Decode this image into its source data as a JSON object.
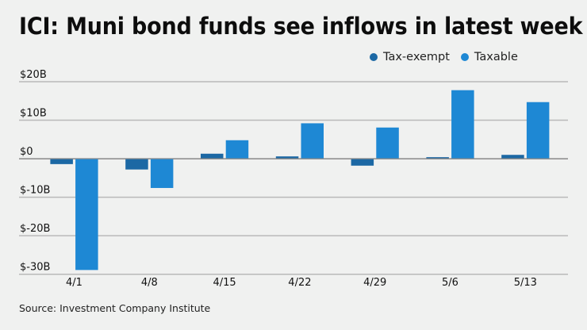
{
  "title": "ICI: Muni bond funds see inflows in latest week",
  "source": "Source: Investment Company Institute",
  "colors": {
    "background": "#f0f1f0",
    "tax_exempt": "#1c68a4",
    "taxable": "#1e88d4",
    "gridline": "#b9b9b9",
    "zero_line": "#8a8a8a"
  },
  "legend": [
    {
      "label": "Tax-exempt",
      "color": "#1c68a4"
    },
    {
      "label": "Taxable",
      "color": "#1e88d4"
    }
  ],
  "chart_data": {
    "type": "bar",
    "title": "ICI: Muni bond funds see inflows in latest week",
    "xlabel": "",
    "ylabel": "",
    "categories": [
      "4/1",
      "4/8",
      "4/15",
      "4/22",
      "4/29",
      "5/6",
      "5/13"
    ],
    "series": [
      {
        "name": "Tax-exempt",
        "values": [
          -1.4,
          -2.8,
          1.3,
          0.6,
          -1.8,
          0.4,
          1.0
        ]
      },
      {
        "name": "Taxable",
        "values": [
          -28.9,
          -7.6,
          4.8,
          9.2,
          8.1,
          17.8,
          14.7
        ]
      }
    ],
    "ylim": [
      -30,
      20
    ],
    "yticks": [
      20,
      10,
      0,
      -10,
      -20,
      -30
    ],
    "ytick_labels": [
      "$20B",
      "$10B",
      "$0",
      "$-10B",
      "$-20B",
      "$-30B"
    ],
    "units": "billions USD",
    "grid": true,
    "legend_position": "top-right"
  }
}
